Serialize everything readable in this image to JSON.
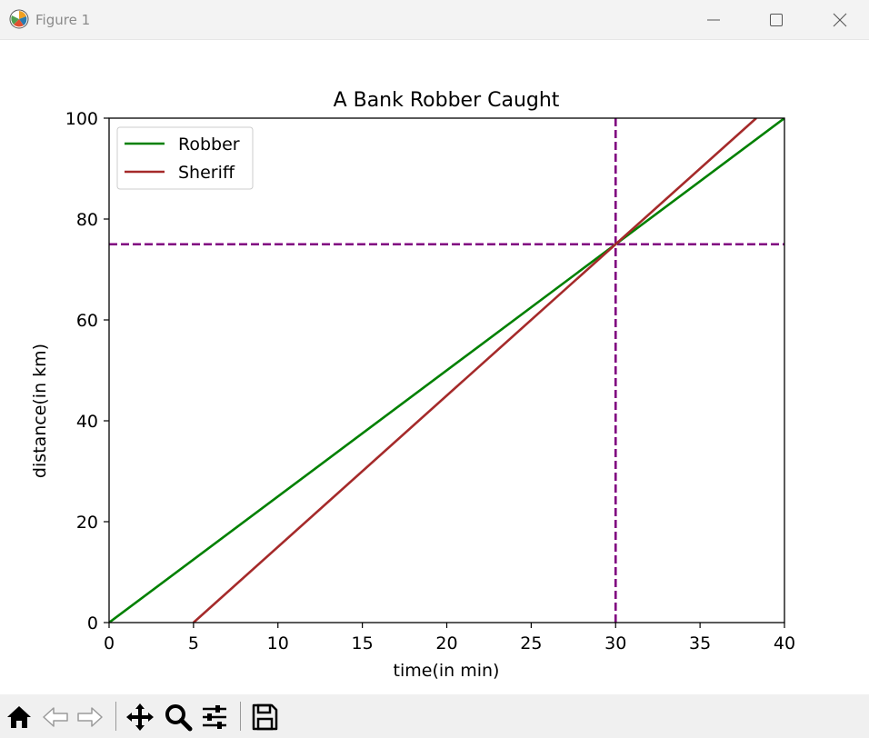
{
  "window": {
    "title": "Figure 1"
  },
  "chart_data": {
    "type": "line",
    "title": "A Bank Robber Caught",
    "xlabel": "time(in min)",
    "ylabel": "distance(in km)",
    "xlim": [
      0,
      40
    ],
    "ylim": [
      0,
      100
    ],
    "xticks": [
      0,
      5,
      10,
      15,
      20,
      25,
      30,
      35,
      40
    ],
    "yticks": [
      0,
      20,
      40,
      60,
      80,
      100
    ],
    "grid": false,
    "legend": "upper-left",
    "series": [
      {
        "name": "Robber",
        "color": "#008000",
        "x": [
          0,
          40
        ],
        "y": [
          0,
          100
        ]
      },
      {
        "name": "Sheriff",
        "color": "#a52a2a",
        "x": [
          5,
          38.33
        ],
        "y": [
          0,
          100
        ]
      }
    ],
    "reference_lines": [
      {
        "orientation": "vertical",
        "x": 30,
        "color": "#800080",
        "style": "dashed"
      },
      {
        "orientation": "horizontal",
        "y": 75,
        "color": "#800080",
        "style": "dashed"
      }
    ]
  },
  "toolbar": {
    "items": [
      {
        "icon": "home-icon"
      },
      {
        "icon": "back-arrow-icon"
      },
      {
        "icon": "forward-arrow-icon"
      },
      {
        "icon": "pan-icon"
      },
      {
        "icon": "zoom-icon"
      },
      {
        "icon": "configure-subplots-icon"
      },
      {
        "icon": "save-icon"
      }
    ]
  }
}
